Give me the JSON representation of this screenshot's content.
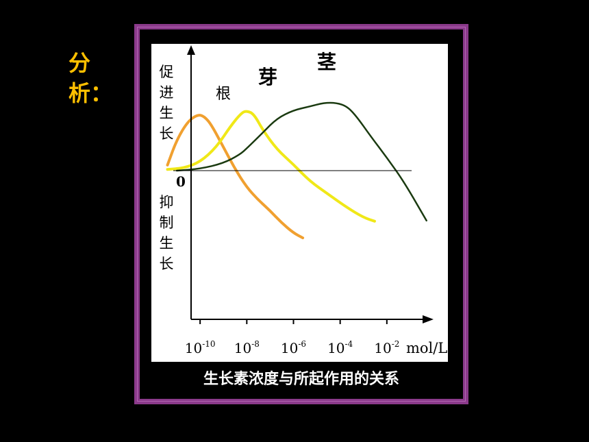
{
  "side_label": "分析：",
  "caption": "生长素浓度与所起作用的关系",
  "colors": {
    "background": "#000000",
    "frame": "#8b3a8b",
    "label": "#ffc000",
    "root": "#f0a030",
    "bud": "#f0e818",
    "stem": "#1a3a10"
  },
  "chart_data": {
    "type": "line",
    "title": "",
    "xlabel": "mol/L",
    "ylabel_up": "促进生长",
    "ylabel_down": "抑制生长",
    "zero_label": "0",
    "x_scale": "log",
    "xlim": [
      1e-12,
      1
    ],
    "x_ticks": [
      {
        "value": 1e-10,
        "base": "10",
        "exp": "-10"
      },
      {
        "value": 1e-08,
        "base": "10",
        "exp": "-8"
      },
      {
        "value": 1e-06,
        "base": "10",
        "exp": "-6"
      },
      {
        "value": 0.0001,
        "base": "10",
        "exp": "-4"
      },
      {
        "value": 0.01,
        "base": "10",
        "exp": "-2"
      }
    ],
    "ylim": [
      -1.05,
      1.05
    ],
    "grid": false,
    "series": [
      {
        "name": "根",
        "color": "#f0a030",
        "x": [
          4e-12,
          1e-11,
          3e-11,
          8e-11,
          1.5e-10,
          3e-10,
          1e-09,
          3e-09,
          1e-08,
          3e-08,
          1e-07,
          3e-07,
          1e-06,
          2.5e-06
        ],
        "y": [
          0.09,
          0.5,
          0.8,
          0.91,
          0.88,
          0.75,
          0.38,
          0.04,
          -0.27,
          -0.47,
          -0.65,
          -0.84,
          -1.01,
          -1.09
        ]
      },
      {
        "name": "芽",
        "color": "#f0e818",
        "x": [
          4e-12,
          2e-11,
          1e-10,
          5e-10,
          2e-09,
          6e-09,
          1e-08,
          2e-08,
          5e-08,
          2e-07,
          1e-06,
          5e-06,
          3e-05,
          0.0002,
          0.001,
          0.003
        ],
        "y": [
          0.02,
          0.04,
          0.14,
          0.38,
          0.72,
          0.94,
          0.97,
          0.92,
          0.65,
          0.34,
          0.1,
          -0.17,
          -0.38,
          -0.6,
          -0.76,
          -0.82
        ]
      },
      {
        "name": "茎",
        "color": "#1a3a10",
        "x": [
          1e-11,
          1e-10,
          1e-09,
          5e-09,
          1e-08,
          5e-08,
          2e-07,
          1e-06,
          5e-06,
          2e-05,
          7e-05,
          0.0002,
          0.0005,
          0.002,
          0.01,
          0.05,
          0.5
        ],
        "y": [
          0.0,
          0.03,
          0.12,
          0.26,
          0.36,
          0.62,
          0.85,
          0.98,
          1.04,
          1.1,
          1.1,
          1.04,
          0.88,
          0.56,
          0.21,
          -0.16,
          -0.81
        ]
      }
    ]
  }
}
